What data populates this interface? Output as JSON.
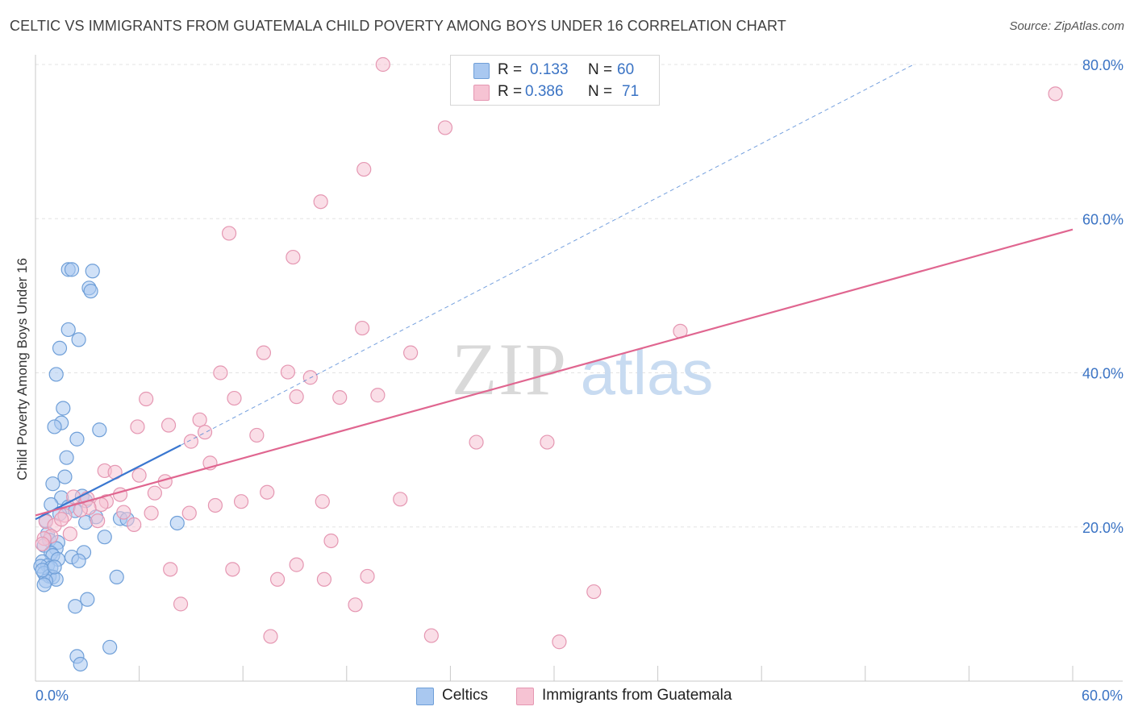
{
  "title": "CELTIC VS IMMIGRANTS FROM GUATEMALA CHILD POVERTY AMONG BOYS UNDER 16 CORRELATION CHART",
  "source": "Source: ZipAtlas.com",
  "watermark": {
    "zip": "ZIP",
    "atlas": "atlas"
  },
  "legend": {
    "rows": [
      {
        "r_label": "R =",
        "r_value": "0.133",
        "n_label": "N =",
        "n_value": "60"
      },
      {
        "r_label": "R =",
        "r_value": "0.386",
        "n_label": "N =",
        "n_value": "71"
      }
    ]
  },
  "colors": {
    "celtic_fill": "#a9c8f0",
    "celtic_stroke": "#6f9fd8",
    "celtic_line": "#3a77d0",
    "guatemala_fill": "#f6c3d3",
    "guatemala_stroke": "#e597b2",
    "guatemala_line": "#e06690",
    "grid": "#e3e3e3",
    "tick_label": "#3a73c4",
    "axis": "#c8c8c8"
  },
  "chart_data": {
    "type": "scatter",
    "title": "CELTIC VS IMMIGRANTS FROM GUATEMALA CHILD POVERTY AMONG BOYS UNDER 16 CORRELATION CHART",
    "xlabel": "",
    "ylabel": "Child Poverty Among Boys Under 16",
    "xlim": [
      0,
      60
    ],
    "ylim": [
      0,
      80
    ],
    "x_tick_labels": [
      "0.0%",
      "60.0%"
    ],
    "y_ticks": [
      20,
      40,
      60,
      80
    ],
    "y_tick_labels": [
      "20.0%",
      "40.0%",
      "60.0%",
      "80.0%"
    ],
    "series": [
      {
        "name": "Celtics",
        "r": 0.133,
        "n": 60,
        "trend": {
          "x": [
            0,
            8.4
          ],
          "y": [
            21.0,
            30.6
          ]
        },
        "trend_extension": {
          "x": [
            8.4,
            50.8
          ],
          "y": [
            30.6,
            80.0
          ]
        },
        "points": [
          [
            1.9,
            53.4
          ],
          [
            2.1,
            53.4
          ],
          [
            3.3,
            53.2
          ],
          [
            3.1,
            51.0
          ],
          [
            3.2,
            50.6
          ],
          [
            1.9,
            45.6
          ],
          [
            2.5,
            44.3
          ],
          [
            1.4,
            43.2
          ],
          [
            1.2,
            39.8
          ],
          [
            1.6,
            35.4
          ],
          [
            1.5,
            33.5
          ],
          [
            1.1,
            33.0
          ],
          [
            3.7,
            32.6
          ],
          [
            2.4,
            31.4
          ],
          [
            1.8,
            29.0
          ],
          [
            1.7,
            26.5
          ],
          [
            1.0,
            25.6
          ],
          [
            2.7,
            24.0
          ],
          [
            1.5,
            23.8
          ],
          [
            2.9,
            23.4
          ],
          [
            0.9,
            22.9
          ],
          [
            1.9,
            22.6
          ],
          [
            2.3,
            22.1
          ],
          [
            1.4,
            21.7
          ],
          [
            3.5,
            21.3
          ],
          [
            4.9,
            21.1
          ],
          [
            5.3,
            21.0
          ],
          [
            0.6,
            20.8
          ],
          [
            2.9,
            20.6
          ],
          [
            8.2,
            20.5
          ],
          [
            0.7,
            19.1
          ],
          [
            4.0,
            18.7
          ],
          [
            0.8,
            18.3
          ],
          [
            1.3,
            18.0
          ],
          [
            0.5,
            17.6
          ],
          [
            1.2,
            17.2
          ],
          [
            2.8,
            16.7
          ],
          [
            0.9,
            16.6
          ],
          [
            1.0,
            16.3
          ],
          [
            2.1,
            16.1
          ],
          [
            1.3,
            15.8
          ],
          [
            0.4,
            15.5
          ],
          [
            2.5,
            15.6
          ],
          [
            0.7,
            15.0
          ],
          [
            0.3,
            14.9
          ],
          [
            0.9,
            14.7
          ],
          [
            0.5,
            14.0
          ],
          [
            0.8,
            13.6
          ],
          [
            1.0,
            13.5
          ],
          [
            1.2,
            13.2
          ],
          [
            0.6,
            13.0
          ],
          [
            0.5,
            12.5
          ],
          [
            4.7,
            13.5
          ],
          [
            3.0,
            10.6
          ],
          [
            2.3,
            9.7
          ],
          [
            4.3,
            4.4
          ],
          [
            2.4,
            3.2
          ],
          [
            2.6,
            2.2
          ],
          [
            0.4,
            14.4
          ],
          [
            1.1,
            14.8
          ]
        ]
      },
      {
        "name": "Immigrants from Guatemala",
        "r": 0.386,
        "n": 71,
        "trend": {
          "x": [
            0,
            60
          ],
          "y": [
            21.5,
            58.6
          ]
        },
        "points": [
          [
            20.1,
            80.0
          ],
          [
            59.0,
            76.2
          ],
          [
            23.7,
            71.8
          ],
          [
            19.0,
            66.4
          ],
          [
            16.5,
            62.2
          ],
          [
            11.2,
            58.1
          ],
          [
            14.9,
            55.0
          ],
          [
            18.9,
            45.8
          ],
          [
            37.3,
            45.4
          ],
          [
            13.2,
            42.6
          ],
          [
            21.7,
            42.6
          ],
          [
            14.6,
            40.1
          ],
          [
            10.7,
            40.0
          ],
          [
            15.9,
            39.4
          ],
          [
            6.4,
            36.6
          ],
          [
            11.5,
            36.7
          ],
          [
            17.6,
            36.8
          ],
          [
            15.1,
            36.9
          ],
          [
            19.8,
            37.1
          ],
          [
            9.5,
            33.9
          ],
          [
            5.9,
            33.0
          ],
          [
            7.7,
            33.2
          ],
          [
            9.8,
            32.3
          ],
          [
            12.8,
            31.9
          ],
          [
            9.0,
            31.1
          ],
          [
            25.5,
            31.0
          ],
          [
            29.6,
            31.0
          ],
          [
            10.1,
            28.3
          ],
          [
            4.0,
            27.3
          ],
          [
            4.6,
            27.1
          ],
          [
            6.0,
            26.7
          ],
          [
            7.5,
            25.9
          ],
          [
            6.9,
            24.4
          ],
          [
            4.9,
            24.2
          ],
          [
            13.4,
            24.5
          ],
          [
            2.2,
            23.9
          ],
          [
            3.0,
            23.7
          ],
          [
            4.1,
            23.3
          ],
          [
            11.9,
            23.3
          ],
          [
            16.6,
            23.3
          ],
          [
            21.1,
            23.6
          ],
          [
            3.8,
            22.9
          ],
          [
            10.4,
            22.8
          ],
          [
            3.1,
            22.5
          ],
          [
            2.6,
            22.2
          ],
          [
            5.1,
            21.9
          ],
          [
            6.7,
            21.8
          ],
          [
            8.9,
            21.8
          ],
          [
            1.7,
            21.5
          ],
          [
            0.6,
            20.7
          ],
          [
            3.6,
            20.8
          ],
          [
            5.7,
            20.3
          ],
          [
            1.1,
            20.2
          ],
          [
            2.0,
            19.1
          ],
          [
            0.9,
            18.8
          ],
          [
            0.5,
            18.5
          ],
          [
            17.1,
            18.2
          ],
          [
            0.4,
            17.8
          ],
          [
            15.1,
            15.1
          ],
          [
            7.8,
            14.5
          ],
          [
            11.4,
            14.5
          ],
          [
            19.2,
            13.6
          ],
          [
            14.0,
            13.2
          ],
          [
            16.7,
            13.2
          ],
          [
            32.3,
            11.6
          ],
          [
            8.4,
            10.0
          ],
          [
            18.5,
            9.9
          ],
          [
            13.6,
            5.8
          ],
          [
            22.9,
            5.9
          ],
          [
            30.3,
            5.1
          ],
          [
            1.5,
            21.0
          ]
        ]
      }
    ]
  }
}
